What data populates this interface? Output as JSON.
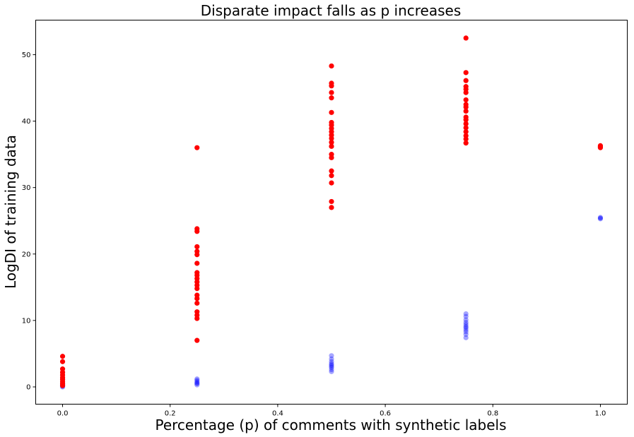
{
  "chart_data": {
    "type": "scatter",
    "title": "Disparate impact falls as p increases",
    "xlabel": "Percentage (p) of comments with synthetic labels",
    "ylabel": "LogDI of training data",
    "xlim": [
      -0.05,
      1.05
    ],
    "ylim": [
      -2.6,
      55.2
    ],
    "xticks": [
      0.0,
      0.2,
      0.4,
      0.6,
      0.8,
      1.0
    ],
    "xtick_labels": [
      "0.0",
      "0.2",
      "0.4",
      "0.6",
      "0.8",
      "1.0"
    ],
    "yticks": [
      0,
      10,
      20,
      30,
      40,
      50
    ],
    "ytick_labels": [
      "0",
      "10",
      "20",
      "30",
      "40",
      "50"
    ],
    "grid": false,
    "legend": "none",
    "series": [
      {
        "color": "#0000ff",
        "opacity": 0.35,
        "points": [
          {
            "x": 0.0,
            "y": 0.0
          },
          {
            "x": 0.0,
            "y": 0.1
          },
          {
            "x": 0.0,
            "y": 0.2
          },
          {
            "x": 0.0,
            "y": 0.3
          },
          {
            "x": 0.0,
            "y": 0.4
          },
          {
            "x": 0.0,
            "y": 0.5
          },
          {
            "x": 0.25,
            "y": 0.3
          },
          {
            "x": 0.25,
            "y": 0.5
          },
          {
            "x": 0.25,
            "y": 0.6
          },
          {
            "x": 0.25,
            "y": 0.8
          },
          {
            "x": 0.25,
            "y": 1.0
          },
          {
            "x": 0.25,
            "y": 1.2
          },
          {
            "x": 0.5,
            "y": 2.3
          },
          {
            "x": 0.5,
            "y": 2.6
          },
          {
            "x": 0.5,
            "y": 2.9
          },
          {
            "x": 0.5,
            "y": 3.1
          },
          {
            "x": 0.5,
            "y": 3.3
          },
          {
            "x": 0.5,
            "y": 3.5
          },
          {
            "x": 0.5,
            "y": 3.8
          },
          {
            "x": 0.5,
            "y": 4.2
          },
          {
            "x": 0.5,
            "y": 4.7
          },
          {
            "x": 0.75,
            "y": 7.4
          },
          {
            "x": 0.75,
            "y": 7.9
          },
          {
            "x": 0.75,
            "y": 8.3
          },
          {
            "x": 0.75,
            "y": 8.6
          },
          {
            "x": 0.75,
            "y": 8.9
          },
          {
            "x": 0.75,
            "y": 9.1
          },
          {
            "x": 0.75,
            "y": 9.4
          },
          {
            "x": 0.75,
            "y": 9.7
          },
          {
            "x": 0.75,
            "y": 10.1
          },
          {
            "x": 0.75,
            "y": 10.6
          },
          {
            "x": 0.75,
            "y": 11.0
          },
          {
            "x": 1.0,
            "y": 25.3
          },
          {
            "x": 1.0,
            "y": 25.4
          },
          {
            "x": 1.0,
            "y": 25.5
          }
        ]
      },
      {
        "color": "#ff0000",
        "opacity": 1,
        "points": [
          {
            "x": 0.0,
            "y": 0.2
          },
          {
            "x": 0.0,
            "y": 0.5
          },
          {
            "x": 0.0,
            "y": 0.8
          },
          {
            "x": 0.0,
            "y": 1.1
          },
          {
            "x": 0.0,
            "y": 1.4
          },
          {
            "x": 0.0,
            "y": 1.8
          },
          {
            "x": 0.0,
            "y": 2.2
          },
          {
            "x": 0.0,
            "y": 2.7
          },
          {
            "x": 0.0,
            "y": 3.8
          },
          {
            "x": 0.0,
            "y": 4.6
          },
          {
            "x": 0.25,
            "y": 7.0
          },
          {
            "x": 0.25,
            "y": 10.3
          },
          {
            "x": 0.25,
            "y": 10.8
          },
          {
            "x": 0.25,
            "y": 11.3
          },
          {
            "x": 0.25,
            "y": 12.6
          },
          {
            "x": 0.25,
            "y": 13.3
          },
          {
            "x": 0.25,
            "y": 13.8
          },
          {
            "x": 0.25,
            "y": 14.8
          },
          {
            "x": 0.25,
            "y": 15.3
          },
          {
            "x": 0.25,
            "y": 15.8
          },
          {
            "x": 0.25,
            "y": 16.3
          },
          {
            "x": 0.25,
            "y": 16.8
          },
          {
            "x": 0.25,
            "y": 17.2
          },
          {
            "x": 0.25,
            "y": 18.6
          },
          {
            "x": 0.25,
            "y": 19.9
          },
          {
            "x": 0.25,
            "y": 20.4
          },
          {
            "x": 0.25,
            "y": 21.1
          },
          {
            "x": 0.25,
            "y": 23.4
          },
          {
            "x": 0.25,
            "y": 23.8
          },
          {
            "x": 0.25,
            "y": 36.0
          },
          {
            "x": 0.5,
            "y": 27.0
          },
          {
            "x": 0.5,
            "y": 27.9
          },
          {
            "x": 0.5,
            "y": 30.7
          },
          {
            "x": 0.5,
            "y": 31.8
          },
          {
            "x": 0.5,
            "y": 32.5
          },
          {
            "x": 0.5,
            "y": 34.5
          },
          {
            "x": 0.5,
            "y": 35.0
          },
          {
            "x": 0.5,
            "y": 36.2
          },
          {
            "x": 0.5,
            "y": 36.8
          },
          {
            "x": 0.5,
            "y": 37.4
          },
          {
            "x": 0.5,
            "y": 37.9
          },
          {
            "x": 0.5,
            "y": 38.4
          },
          {
            "x": 0.5,
            "y": 38.9
          },
          {
            "x": 0.5,
            "y": 39.4
          },
          {
            "x": 0.5,
            "y": 39.8
          },
          {
            "x": 0.5,
            "y": 41.3
          },
          {
            "x": 0.5,
            "y": 43.5
          },
          {
            "x": 0.5,
            "y": 44.3
          },
          {
            "x": 0.5,
            "y": 45.3
          },
          {
            "x": 0.5,
            "y": 45.7
          },
          {
            "x": 0.5,
            "y": 48.3
          },
          {
            "x": 0.75,
            "y": 36.7
          },
          {
            "x": 0.75,
            "y": 37.3
          },
          {
            "x": 0.75,
            "y": 37.8
          },
          {
            "x": 0.75,
            "y": 38.4
          },
          {
            "x": 0.75,
            "y": 39.0
          },
          {
            "x": 0.75,
            "y": 39.6
          },
          {
            "x": 0.75,
            "y": 40.2
          },
          {
            "x": 0.75,
            "y": 40.6
          },
          {
            "x": 0.75,
            "y": 41.5
          },
          {
            "x": 0.75,
            "y": 42.1
          },
          {
            "x": 0.75,
            "y": 42.5
          },
          {
            "x": 0.75,
            "y": 43.2
          },
          {
            "x": 0.75,
            "y": 44.3
          },
          {
            "x": 0.75,
            "y": 44.8
          },
          {
            "x": 0.75,
            "y": 45.2
          },
          {
            "x": 0.75,
            "y": 46.1
          },
          {
            "x": 0.75,
            "y": 47.3
          },
          {
            "x": 0.75,
            "y": 52.5
          },
          {
            "x": 1.0,
            "y": 36.0
          },
          {
            "x": 1.0,
            "y": 36.1
          },
          {
            "x": 1.0,
            "y": 36.2
          },
          {
            "x": 1.0,
            "y": 36.3
          }
        ]
      }
    ]
  }
}
